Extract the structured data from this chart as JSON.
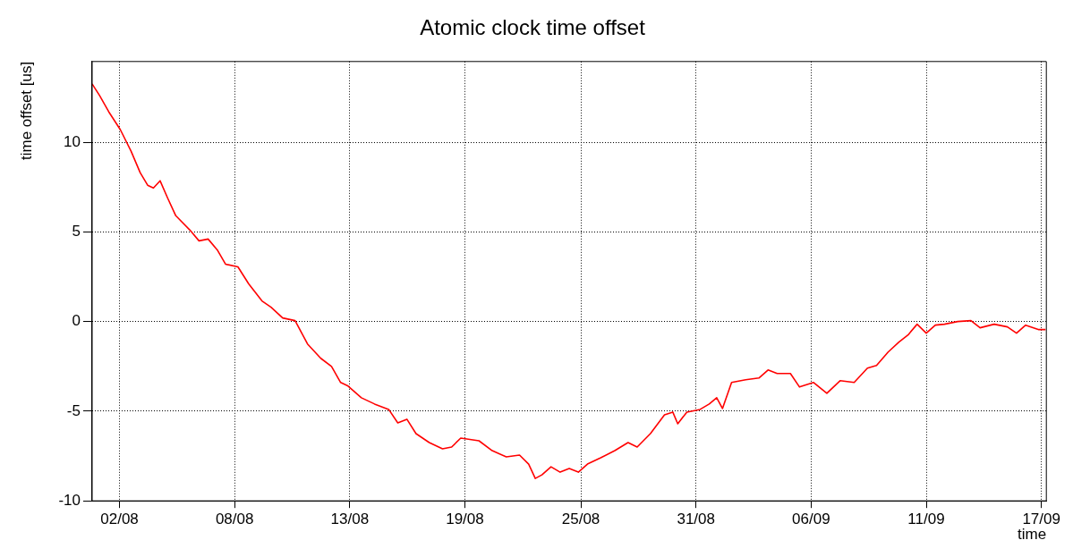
{
  "chart_data": {
    "type": "line",
    "title": "Atomic clock time offset",
    "xlabel": "time",
    "ylabel": "time offset [us]",
    "xlim": [
      "--07-31T20:00",
      "--09-17T20:00"
    ],
    "ylim": [
      -10,
      14.5
    ],
    "xticks": [
      {
        "value": "--08-02T05:00",
        "label": "02/08"
      },
      {
        "value": "--08-08T00:00",
        "label": "08/08"
      },
      {
        "value": "--08-13T19:00",
        "label": "13/08"
      },
      {
        "value": "--08-19T14:00",
        "label": "19/08"
      },
      {
        "value": "--08-25T10:00",
        "label": "25/08"
      },
      {
        "value": "--08-31T05:00",
        "label": "31/08"
      },
      {
        "value": "--09-06T00:00",
        "label": "06/09"
      },
      {
        "value": "--09-11T19:00",
        "label": "11/09"
      },
      {
        "value": "--09-17T14:00",
        "label": "17/09"
      }
    ],
    "yticks": [
      -10,
      -5,
      0,
      5,
      10
    ],
    "grid": true,
    "legend": false,
    "marker": "none",
    "line_style": "solid",
    "series": [
      {
        "color": "#ff0000",
        "x": [
          "--07-31T20:00",
          "--08-01T05:00",
          "--08-01T16:00",
          "--08-02T06:00",
          "--08-02T19:00",
          "--08-03T06:00",
          "--08-03T15:00",
          "--08-03T22:00",
          "--08-04T06:00",
          "--08-04T15:00",
          "--08-05T01:00",
          "--08-05T18:00",
          "--08-06T05:00",
          "--08-06T16:00",
          "--08-07T03:00",
          "--08-07T13:00",
          "--08-08T04:00",
          "--08-08T17:00",
          "--08-09T09:00",
          "--08-09T20:00",
          "--08-10T10:00",
          "--08-11T01:00",
          "--08-11T16:00",
          "--08-12T08:00",
          "--08-12T21:00",
          "--08-13T08:00",
          "--08-13T17:00",
          "--08-14T09:00",
          "--08-15T01:00",
          "--08-15T18:00",
          "--08-16T05:00",
          "--08-16T16:00",
          "--08-17T03:00",
          "--08-17T19:00",
          "--08-18T11:00",
          "--08-18T22:00",
          "--08-19T09:00",
          "--08-20T07:00",
          "--08-20T23:00",
          "--08-21T16:00",
          "--08-22T08:00",
          "--08-22T19:00",
          "--08-23T03:00",
          "--08-23T11:00",
          "--08-23T22:00",
          "--08-24T09:00",
          "--08-24T20:00",
          "--08-25T07:00",
          "--08-25T18:00",
          "--08-26T10:00",
          "--08-27T03:00",
          "--08-27T19:00",
          "--08-28T06:00",
          "--08-28T22:00",
          "--08-29T15:00",
          "--08-30T01:00",
          "--08-30T07:00",
          "--08-30T18:00",
          "--08-31T10:00",
          "--08-31T21:00",
          "--09-01T06:00",
          "--09-01T13:00",
          "--09-02T00:00",
          "--09-02T17:00",
          "--09-03T09:00",
          "--09-03T20:00",
          "--09-04T07:00",
          "--09-04T23:00",
          "--09-05T10:00",
          "--09-06T03:00",
          "--09-06T19:00",
          "--09-07T11:00",
          "--09-08T04:00",
          "--09-08T20:00",
          "--09-09T07:00",
          "--09-09T21:00",
          "--09-10T10:00",
          "--09-10T21:00",
          "--09-11T08:00",
          "--09-11T19:00",
          "--09-12T06:00",
          "--09-12T17:00",
          "--09-13T09:00",
          "--09-14T01:00",
          "--09-14T12:00",
          "--09-15T05:00",
          "--09-15T21:00",
          "--09-16T08:00",
          "--09-16T19:00",
          "--09-17T11:00",
          "--09-17T19:00"
        ],
        "values": [
          13.25,
          12.6,
          11.7,
          10.7,
          9.5,
          8.3,
          7.6,
          7.45,
          7.85,
          6.9,
          5.9,
          5.1,
          4.5,
          4.6,
          4.0,
          3.2,
          3.05,
          2.1,
          1.15,
          0.8,
          0.2,
          0.05,
          -1.25,
          -2.05,
          -2.5,
          -3.4,
          -3.6,
          -4.25,
          -4.6,
          -4.9,
          -5.65,
          -5.45,
          -6.25,
          -6.75,
          -7.1,
          -7.0,
          -6.5,
          -6.65,
          -7.2,
          -7.55,
          -7.45,
          -7.95,
          -8.75,
          -8.55,
          -8.1,
          -8.4,
          -8.2,
          -8.4,
          -7.95,
          -7.6,
          -7.2,
          -6.75,
          -7.0,
          -6.25,
          -5.2,
          -5.05,
          -5.7,
          -5.05,
          -4.9,
          -4.6,
          -4.25,
          -4.85,
          -3.4,
          -3.25,
          -3.15,
          -2.7,
          -2.9,
          -2.9,
          -3.65,
          -3.4,
          -4.0,
          -3.3,
          -3.4,
          -2.6,
          -2.45,
          -1.7,
          -1.15,
          -0.75,
          -0.15,
          -0.65,
          -0.2,
          -0.15,
          0,
          0.05,
          -0.35,
          -0.15,
          -0.3,
          -0.65,
          -0.2,
          -0.45,
          -0.45
        ]
      }
    ]
  }
}
